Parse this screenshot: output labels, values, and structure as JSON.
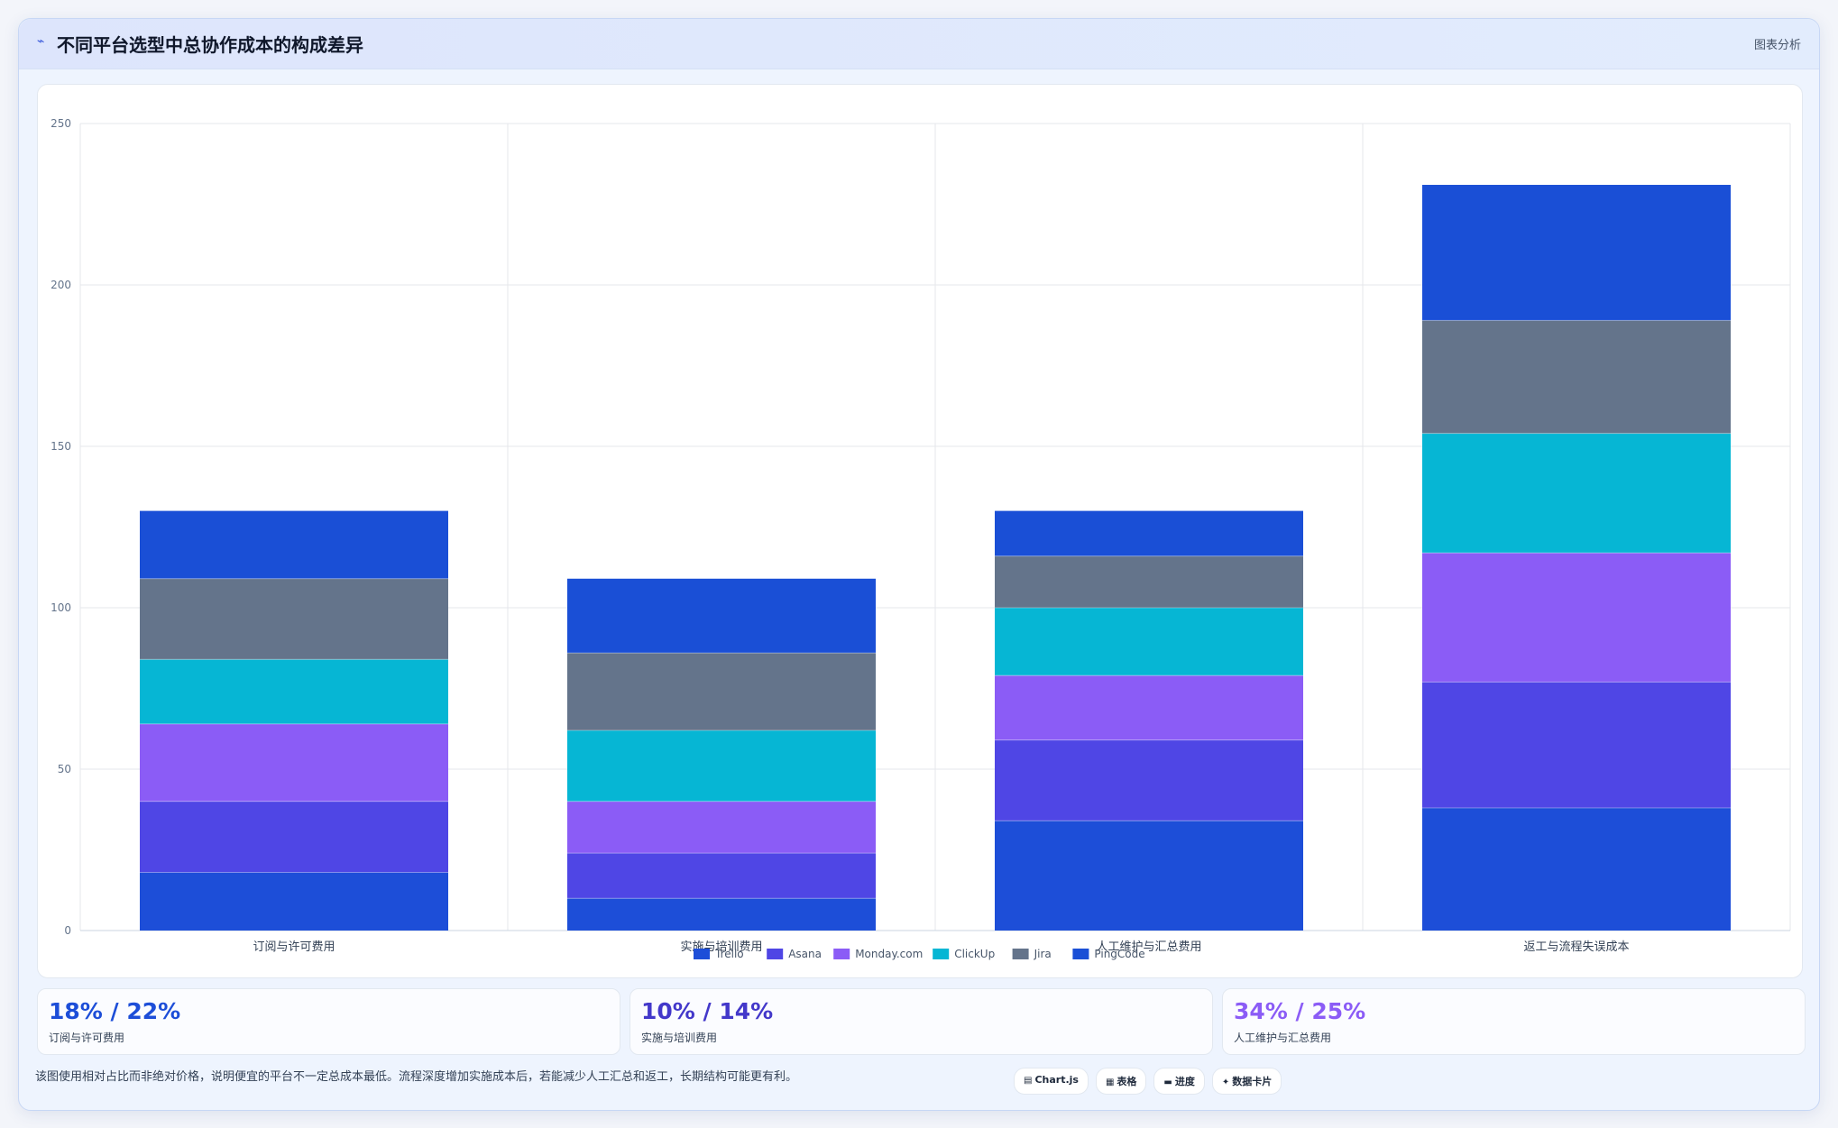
{
  "header": {
    "title": "不同平台选型中总协作成本的构成差异",
    "tag": "图表分析"
  },
  "chart_data": {
    "type": "bar",
    "stacked": true,
    "categories": [
      "订阅与许可费用",
      "实施与培训费用",
      "人工维护与汇总费用",
      "返工与流程失误成本"
    ],
    "series": [
      {
        "name": "Trello",
        "color": "#1d4ed8",
        "values": [
          18,
          10,
          34,
          38
        ]
      },
      {
        "name": "Asana",
        "color": "#4f46e5",
        "values": [
          22,
          14,
          25,
          39
        ]
      },
      {
        "name": "Monday.com",
        "color": "#8b5cf6",
        "values": [
          24,
          16,
          20,
          40
        ]
      },
      {
        "name": "ClickUp",
        "color": "#06b6d4",
        "values": [
          20,
          22,
          21,
          37
        ]
      },
      {
        "name": "Jira",
        "color": "#64748b",
        "values": [
          25,
          24,
          16,
          35
        ]
      },
      {
        "name": "PingCode",
        "color": "#1a4fd6",
        "values": [
          21,
          23,
          14,
          42
        ]
      }
    ],
    "ylim": [
      0,
      250
    ],
    "yticks": [
      0,
      50,
      100,
      150,
      200,
      250
    ],
    "grid": true,
    "legend": "bottom"
  },
  "stats": [
    {
      "value": "18% / 22%",
      "label": "订阅与许可费用",
      "color": "#1d4ed8"
    },
    {
      "value": "10% / 14%",
      "label": "实施与培训费用",
      "color": "#4338ca"
    },
    {
      "value": "34% / 25%",
      "label": "人工维护与汇总费用",
      "color": "#8b5cf6"
    }
  ],
  "footer": {
    "note": "该图使用相对占比而非绝对价格，说明便宜的平台不一定总成本最低。流程深度增加实施成本后，若能减少人工汇总和返工，长期结构可能更有利。",
    "pills": [
      {
        "icon": "▤",
        "label": "Chart.js"
      },
      {
        "icon": "▦",
        "label": "表格"
      },
      {
        "icon": "▬",
        "label": "进度"
      },
      {
        "icon": "✦",
        "label": "数据卡片"
      }
    ]
  }
}
